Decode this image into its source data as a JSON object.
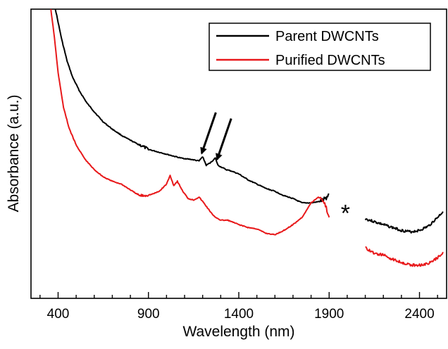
{
  "chart_data": {
    "type": "line",
    "title": "",
    "xlabel": "Wavelength (nm)",
    "ylabel": "Absorbance (a.u.)",
    "xlim": [
      250,
      2550
    ],
    "ylim": [
      0,
      1
    ],
    "x_ticks": [
      400,
      900,
      1400,
      1900,
      2400
    ],
    "x_tick_labels": [
      "400",
      "900",
      "1400",
      "1900",
      "2400"
    ],
    "y_tick_labels_shown": false,
    "grid": false,
    "legend_position": "top-right",
    "series": [
      {
        "name": "Parent DWCNTs",
        "color": "#000000",
        "segments": [
          {
            "x": [
              385,
              400,
              420,
              450,
              480,
              520,
              560,
              600,
              650,
              700,
              760,
              820,
              870,
              900,
              960,
              1020,
              1080,
              1140,
              1180,
              1200,
              1220,
              1245,
              1270,
              1285,
              1300,
              1330,
              1360,
              1400,
              1450,
              1500,
              1550,
              1600,
              1650,
              1700,
              1750,
              1800,
              1850,
              1880,
              1900
            ],
            "y": [
              1.0,
              0.955,
              0.895,
              0.82,
              0.765,
              0.715,
              0.675,
              0.645,
              0.61,
              0.585,
              0.56,
              0.54,
              0.525,
              0.515,
              0.505,
              0.495,
              0.485,
              0.48,
              0.475,
              0.49,
              0.46,
              0.47,
              0.485,
              0.46,
              0.455,
              0.445,
              0.44,
              0.43,
              0.41,
              0.395,
              0.38,
              0.37,
              0.355,
              0.345,
              0.33,
              0.33,
              0.335,
              0.345,
              0.36
            ]
          },
          {
            "x": [
              2100,
              2150,
              2200,
              2250,
              2300,
              2350,
              2400,
              2450,
              2500,
              2530
            ],
            "y": [
              0.275,
              0.265,
              0.255,
              0.245,
              0.235,
              0.23,
              0.235,
              0.25,
              0.28,
              0.3
            ]
          }
        ]
      },
      {
        "name": "Purified DWCNTs",
        "color": "#e8191b",
        "segments": [
          {
            "x": [
              360,
              380,
              400,
              430,
              460,
              500,
              550,
              600,
              650,
              700,
              750,
              800,
              850,
              880,
              920,
              960,
              1000,
              1020,
              1040,
              1060,
              1090,
              1120,
              1150,
              1180,
              1200,
              1230,
              1260,
              1300,
              1340,
              1400,
              1450,
              1500,
              1550,
              1600,
              1650,
              1700,
              1750,
              1800,
              1840,
              1860,
              1880,
              1900
            ],
            "y": [
              1.0,
              0.9,
              0.78,
              0.66,
              0.59,
              0.53,
              0.48,
              0.445,
              0.42,
              0.405,
              0.395,
              0.375,
              0.355,
              0.355,
              0.36,
              0.37,
              0.395,
              0.425,
              0.39,
              0.405,
              0.37,
              0.345,
              0.34,
              0.35,
              0.335,
              0.31,
              0.285,
              0.27,
              0.27,
              0.255,
              0.245,
              0.24,
              0.225,
              0.22,
              0.235,
              0.255,
              0.28,
              0.33,
              0.35,
              0.345,
              0.32,
              0.28
            ]
          },
          {
            "x": [
              2100,
              2150,
              2200,
              2250,
              2300,
              2350,
              2400,
              2450,
              2500,
              2530
            ],
            "y": [
              0.175,
              0.155,
              0.15,
              0.135,
              0.125,
              0.115,
              0.115,
              0.12,
              0.14,
              0.16
            ]
          }
        ]
      }
    ],
    "annotations": [
      {
        "type": "arrow",
        "x": 1195,
        "y": 0.487,
        "label": ""
      },
      {
        "type": "arrow",
        "x": 1280,
        "y": 0.466,
        "label": ""
      },
      {
        "type": "marker",
        "x": 1990,
        "y": 0.3,
        "label": "*"
      }
    ]
  }
}
